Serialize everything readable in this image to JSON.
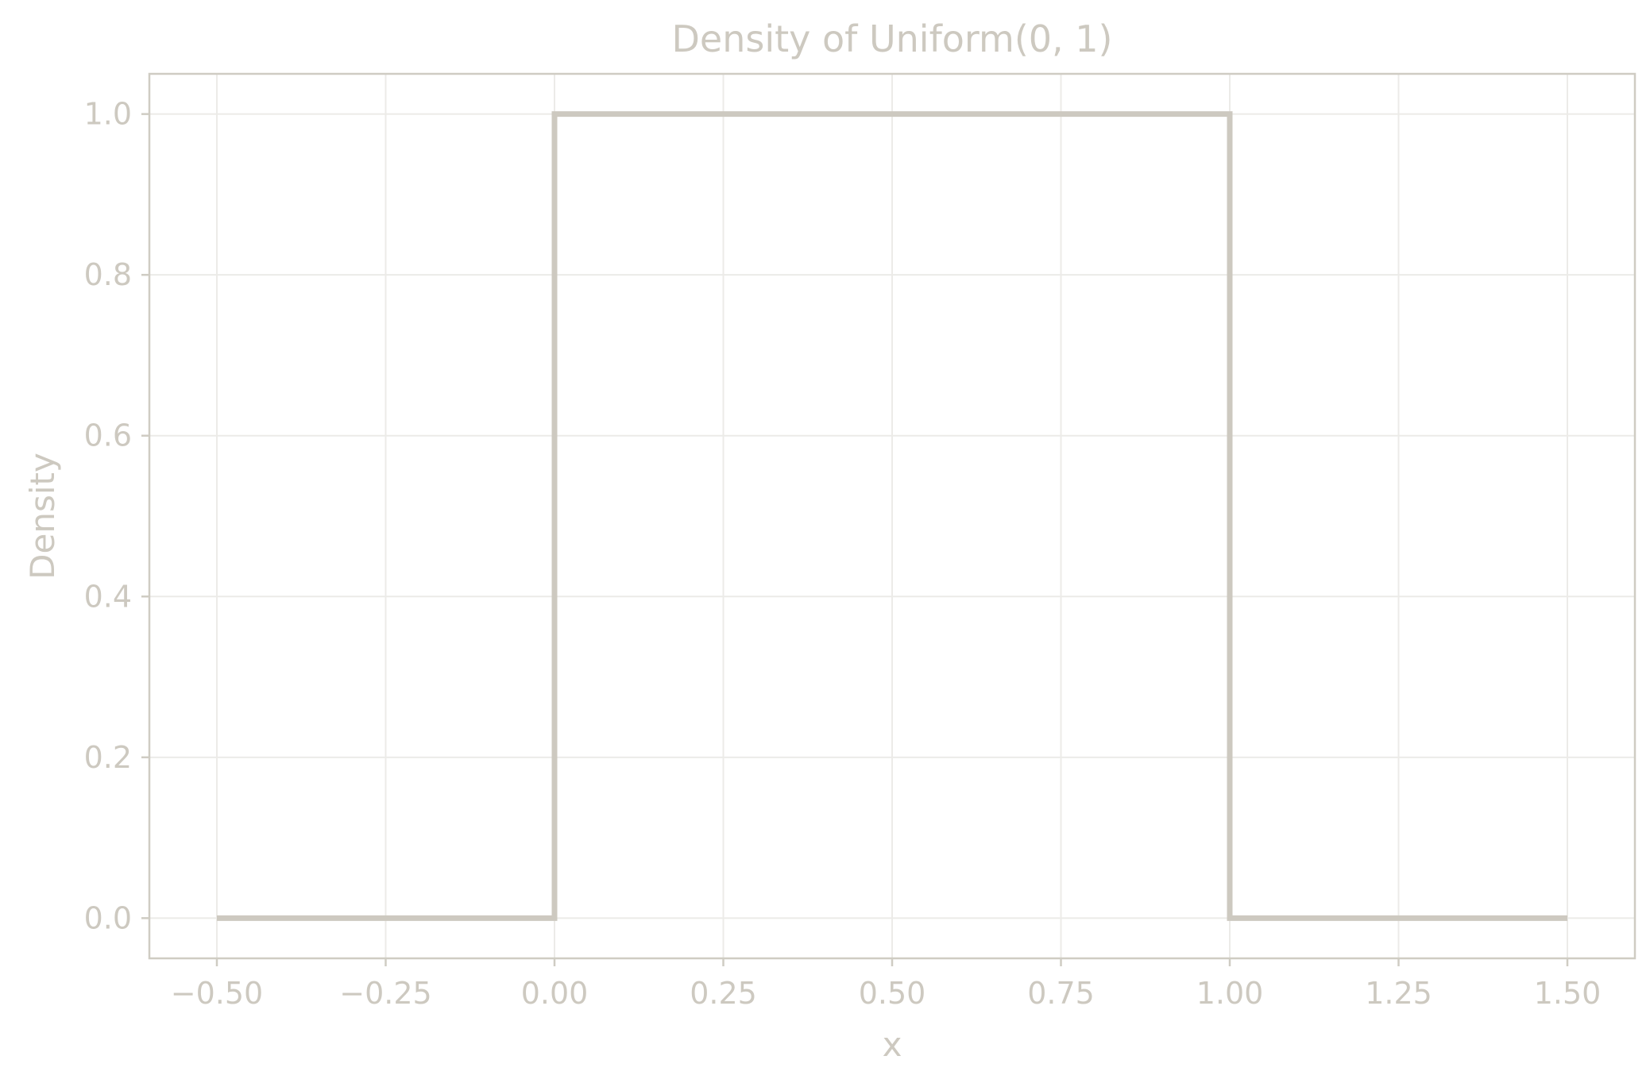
{
  "chart_data": {
    "type": "line",
    "title": "Density of Uniform(0, 1)",
    "xlabel": "x",
    "ylabel": "Density",
    "xlim": [
      -0.6,
      1.6
    ],
    "ylim": [
      -0.05,
      1.05
    ],
    "xticks": [
      -0.5,
      -0.25,
      0.0,
      0.25,
      0.5,
      0.75,
      1.0,
      1.25,
      1.5
    ],
    "xtick_labels": [
      "−0.50",
      "−0.25",
      "0.00",
      "0.25",
      "0.50",
      "0.75",
      "1.00",
      "1.25",
      "1.50"
    ],
    "yticks": [
      0.0,
      0.2,
      0.4,
      0.6,
      0.8,
      1.0
    ],
    "ytick_labels": [
      "0.0",
      "0.2",
      "0.4",
      "0.6",
      "0.8",
      "1.0"
    ],
    "grid": true,
    "series": [
      {
        "color": "#cdc9c0",
        "x": [
          -0.5,
          0.0,
          0.0,
          1.0,
          1.0,
          1.5
        ],
        "y": [
          0.0,
          0.0,
          1.0,
          1.0,
          0.0,
          0.0
        ]
      }
    ]
  }
}
